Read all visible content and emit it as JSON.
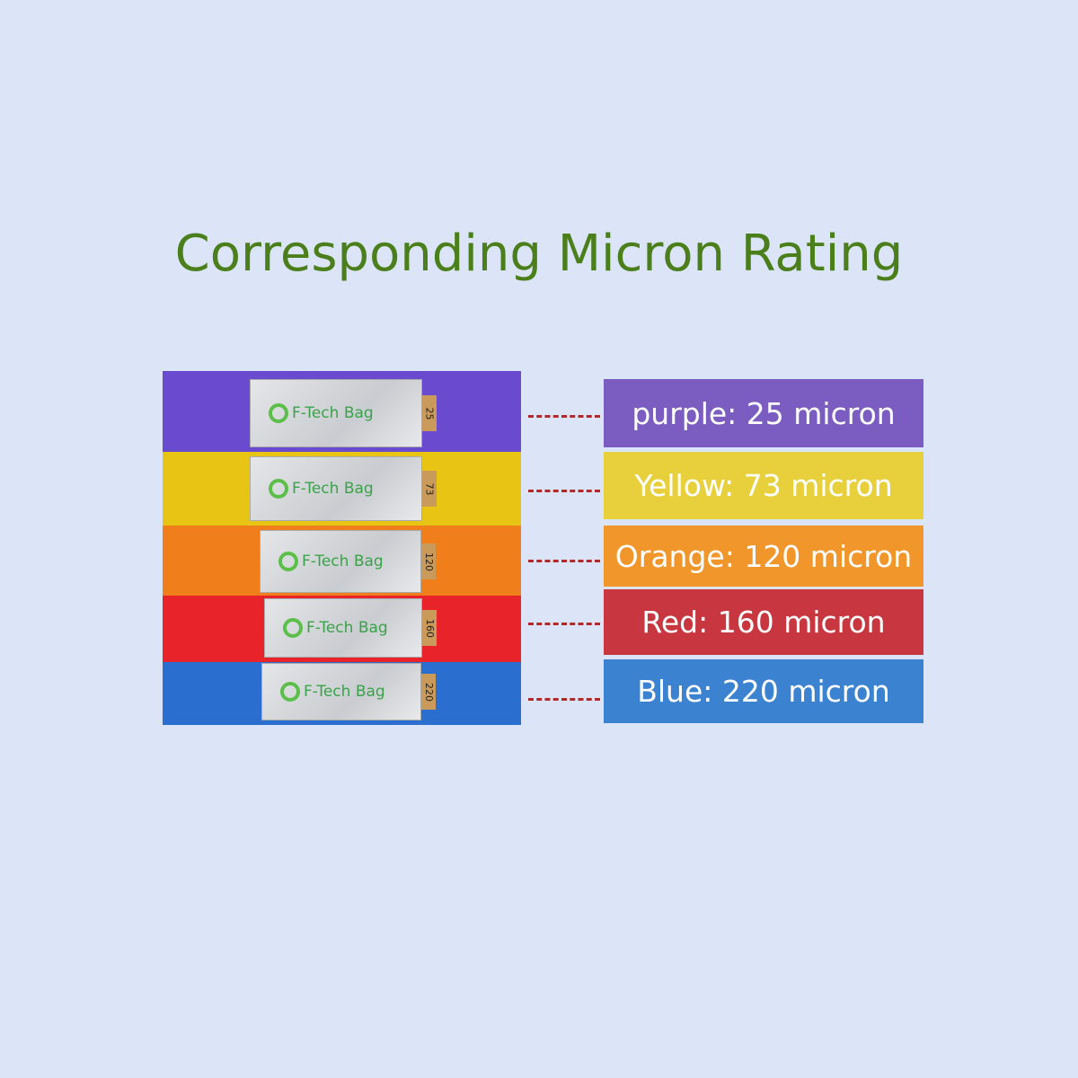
{
  "title": "Corresponding Micron Rating",
  "bags": [
    {
      "brand": "F-Tech Bag",
      "tag": 25,
      "label": "purple: 25 micron"
    },
    {
      "brand": "F-Tech Bag",
      "tag": 73,
      "label": "Yellow: 73 micron"
    },
    {
      "brand": "F-Tech Bag",
      "tag": 120,
      "label": "Orange: 120 micron"
    },
    {
      "brand": "F-Tech Bag",
      "tag": 160,
      "label": "Red: 160 micron"
    },
    {
      "brand": "F-Tech Bag",
      "tag": 220,
      "label": "Blue: 220 micron"
    }
  ]
}
